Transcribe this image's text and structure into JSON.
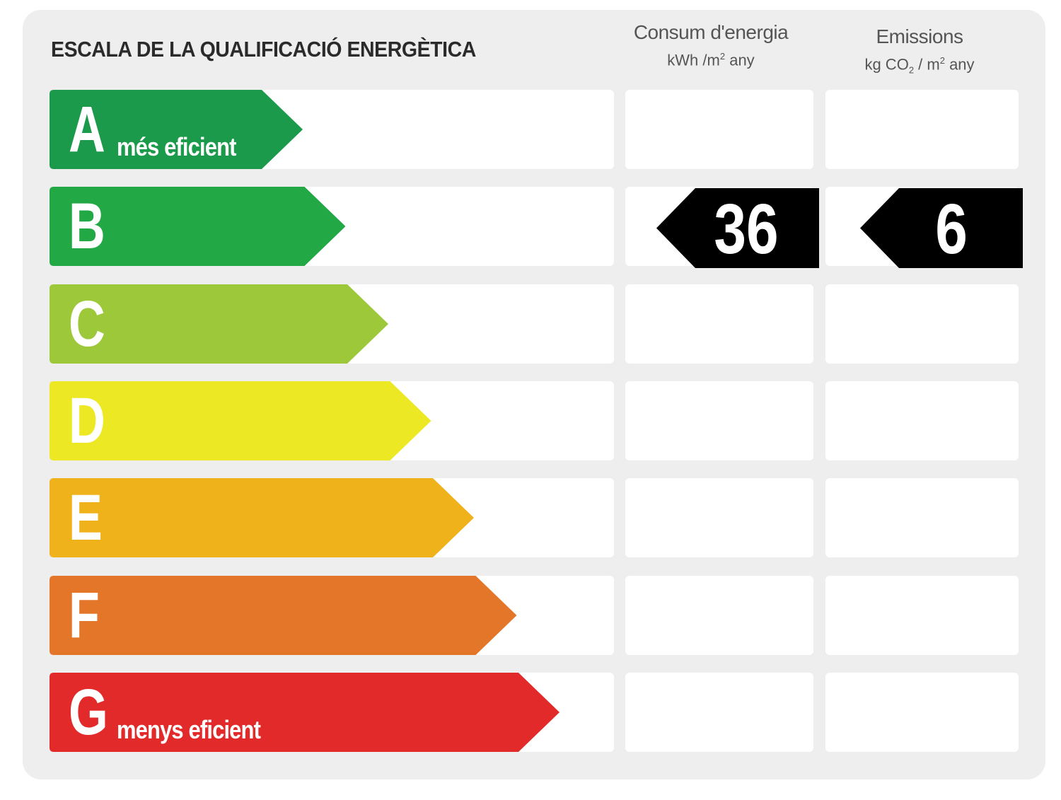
{
  "title": "ESCALA DE LA QUALIFICACIÓ ENERGÈTICA",
  "columns": {
    "energy": {
      "heading": "Consum d'energia",
      "unit_pre": "kWh /m",
      "unit_sup": "2",
      "unit_post": " any"
    },
    "emissions": {
      "heading": "Emissions",
      "unit_pre": "kg CO",
      "unit_sub": "2",
      "unit_mid": " / m",
      "unit_sup": "2",
      "unit_post": " any"
    }
  },
  "classes": [
    {
      "letter": "A",
      "sublabel": "més eficient",
      "color": "#1a9a4a"
    },
    {
      "letter": "B",
      "sublabel": "",
      "color": "#23a846"
    },
    {
      "letter": "C",
      "sublabel": "",
      "color": "#9cc83a"
    },
    {
      "letter": "D",
      "sublabel": "",
      "color": "#ece824"
    },
    {
      "letter": "E",
      "sublabel": "",
      "color": "#f0b21b"
    },
    {
      "letter": "F",
      "sublabel": "",
      "color": "#e4762a"
    },
    {
      "letter": "G",
      "sublabel": "menys eficient",
      "color": "#e32a2a"
    }
  ],
  "rating": {
    "class": "B",
    "energy_value": "36",
    "emissions_value": "6",
    "marker_color": "#000000"
  }
}
